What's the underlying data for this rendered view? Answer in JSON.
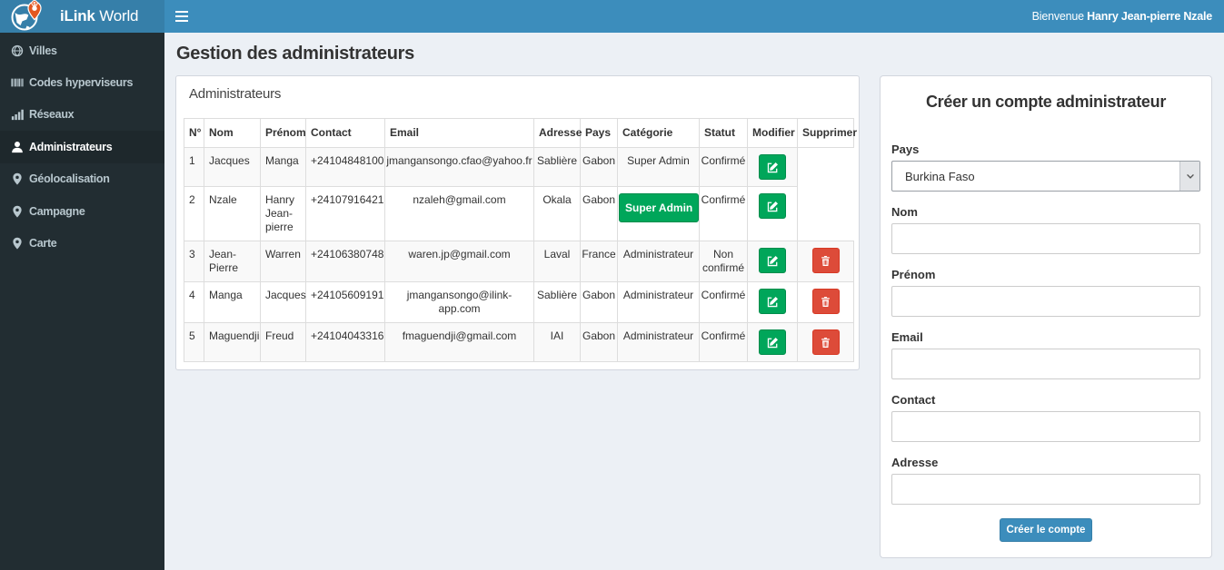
{
  "brand": {
    "bold": "iLink",
    "light": "World"
  },
  "navbar": {
    "welcome_prefix": "Bienvenue",
    "welcome_name": "Hanry Jean-pierre Nzale"
  },
  "sidebar": {
    "items": [
      {
        "icon": "globe-icon",
        "label": "Villes",
        "active": false
      },
      {
        "icon": "barcode-icon",
        "label": "Codes hyperviseurs",
        "active": false
      },
      {
        "icon": "signal-icon",
        "label": "Réseaux",
        "active": false
      },
      {
        "icon": "user-icon",
        "label": "Administrateurs",
        "active": true
      },
      {
        "icon": "map-marker-icon",
        "label": "Géolocalisation",
        "active": false
      },
      {
        "icon": "map-marker-icon",
        "label": "Campagne",
        "active": false
      },
      {
        "icon": "map-marker-icon",
        "label": "Carte",
        "active": false
      }
    ]
  },
  "page": {
    "title": "Gestion des administrateurs"
  },
  "admins": {
    "panel_title": "Administrateurs",
    "columns": [
      "N°",
      "Nom",
      "Prénom",
      "Contact",
      "Email",
      "Adresse",
      "Pays",
      "Catégorie",
      "Statut",
      "Modifier",
      "Supprimer"
    ],
    "rows": [
      {
        "n": "1",
        "nom": "Jacques",
        "prenom": "Manga",
        "contact": "+24104848100",
        "email": "jmangansongo.cfao@yahoo.fr",
        "adresse": "Sablière",
        "pays": "Gabon",
        "categorie": "Super Admin",
        "categorie_badge": false,
        "statut": "Confirmé",
        "deletable": false
      },
      {
        "n": "2",
        "nom": "Nzale",
        "prenom": "Hanry Jean-pierre",
        "contact": "+24107916421",
        "email": "nzaleh@gmail.com",
        "adresse": "Okala",
        "pays": "Gabon",
        "categorie": "Super Admin",
        "categorie_badge": true,
        "statut": "Confirmé",
        "deletable": false
      },
      {
        "n": "3",
        "nom": "Jean-Pierre",
        "prenom": "Warren",
        "contact": "+24106380748",
        "email": "waren.jp@gmail.com",
        "adresse": "Laval",
        "pays": "France",
        "categorie": "Administrateur",
        "categorie_badge": false,
        "statut": "Non confirmé",
        "deletable": true
      },
      {
        "n": "4",
        "nom": "Manga",
        "prenom": "Jacques",
        "contact": "+24105609191",
        "email": "jmangansongo@ilink-app.com",
        "adresse": "Sablière",
        "pays": "Gabon",
        "categorie": "Administrateur",
        "categorie_badge": false,
        "statut": "Confirmé",
        "deletable": true
      },
      {
        "n": "5",
        "nom": "Maguendji",
        "prenom": "Freud",
        "contact": "+24104043316",
        "email": "fmaguendji@gmail.com",
        "adresse": "IAI",
        "pays": "Gabon",
        "categorie": "Administrateur",
        "categorie_badge": false,
        "statut": "Confirmé",
        "deletable": true
      }
    ]
  },
  "form": {
    "title": "Créer un compte administrateur",
    "fields": [
      {
        "label": "Pays",
        "type": "select",
        "value": "Burkina Faso",
        "name": "pays"
      },
      {
        "label": "Nom",
        "type": "text",
        "value": "",
        "name": "nom"
      },
      {
        "label": "Prénom",
        "type": "text",
        "value": "",
        "name": "prenom"
      },
      {
        "label": "Email",
        "type": "text",
        "value": "",
        "name": "email"
      },
      {
        "label": "Contact",
        "type": "text",
        "value": "",
        "name": "contact"
      },
      {
        "label": "Adresse",
        "type": "text",
        "value": "",
        "name": "adresse"
      }
    ],
    "submit_label": "Créer le compte"
  },
  "colors": {
    "navbar": "#3c8dbc",
    "logo_bg": "#367fa9",
    "sidebar": "#222d32",
    "sidebar_active": "#1e282c",
    "green": "#00a65a",
    "red": "#dd4b39",
    "content_bg": "#ecf0f5"
  }
}
